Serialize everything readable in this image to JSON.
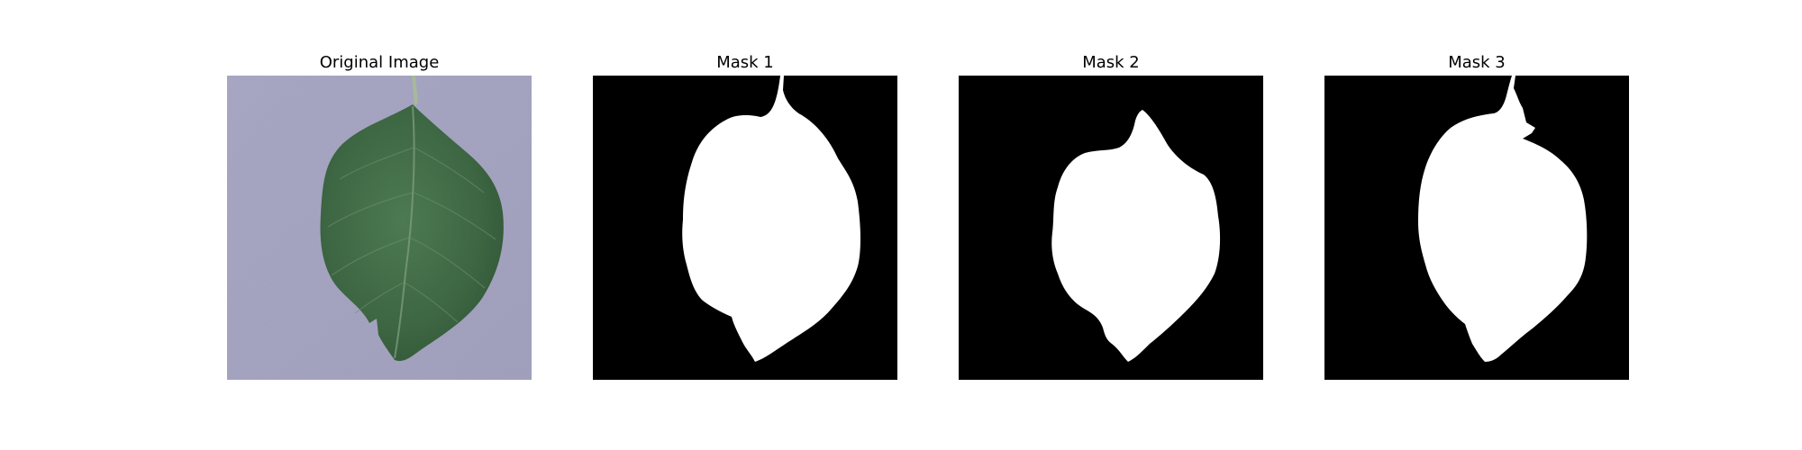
{
  "figure": {
    "panels": [
      {
        "title": "Original Image"
      },
      {
        "title": "Mask 1"
      },
      {
        "title": "Mask 2"
      },
      {
        "title": "Mask 3"
      }
    ]
  },
  "colors": {
    "background": "#ffffff",
    "mask_background": "#000000",
    "mask_foreground": "#ffffff",
    "leaf_green": "#3f6a45",
    "surface_lavender": "#a7a6c3"
  }
}
